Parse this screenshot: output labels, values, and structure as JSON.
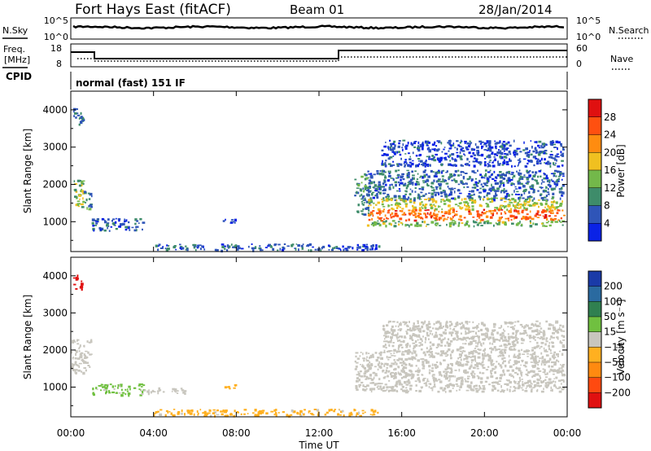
{
  "header": {
    "station": "Fort Hays East (fitACF)",
    "beam": "Beam 01",
    "date": "28/Jan/2014"
  },
  "noise_panel": {
    "left_label": "N.Sky",
    "right_label": "N.Search",
    "tick_top": "10^5",
    "tick_bottom": "10^0",
    "right_tick_top": "10^5",
    "right_tick_bottom": "10^0"
  },
  "freq_panel": {
    "left_label_1": "Freq.",
    "left_label_2": "[MHz]",
    "left_tick_top": "18",
    "left_tick_bottom": "8",
    "right_label": "Nave",
    "right_tick_top": "60",
    "right_tick_bottom": "0"
  },
  "cpid_panel": {
    "label": "CPID",
    "text": "normal (fast) 151 IF"
  },
  "colors": {
    "power_scale": [
      "#0a22e6",
      "#2f55b8",
      "#3e8c6a",
      "#73b84a",
      "#f0c020",
      "#ff8c10",
      "#ff5010",
      "#e01010"
    ],
    "velocity_scale": [
      "#1a3aa8",
      "#2a6aa0",
      "#308050",
      "#70c040",
      "#c8c6be",
      "#ffb020",
      "#ff8a10",
      "#ff4a10",
      "#e01010"
    ]
  },
  "chart_data": [
    {
      "type": "heatmap",
      "panel": "power",
      "ylabel": "Slant Range [km]",
      "y_ticks": [
        "1000",
        "2000",
        "3000",
        "4000"
      ],
      "ylim": [
        200,
        4500
      ],
      "x_ticks": [
        "00:00",
        "04:00",
        "08:00",
        "12:00",
        "16:00",
        "20:00",
        "00:00"
      ],
      "xlim_hours": [
        0,
        24
      ],
      "colorbar": {
        "label": "Power [dB]",
        "ticks": [
          "4",
          "8",
          "12",
          "16",
          "20",
          "24",
          "28"
        ],
        "range": [
          0,
          32
        ]
      },
      "regions": [
        {
          "t": [
            0.1,
            0.6
          ],
          "r": [
            1400,
            2200
          ],
          "v": 14
        },
        {
          "t": [
            0.6,
            1.0
          ],
          "r": [
            1350,
            1850
          ],
          "v": 10
        },
        {
          "t": [
            0.1,
            0.6
          ],
          "r": [
            3600,
            4100
          ],
          "v": 8
        },
        {
          "t": [
            1.0,
            3.5
          ],
          "r": [
            780,
            1100
          ],
          "v": 6
        },
        {
          "t": [
            7.3,
            8.0
          ],
          "r": [
            980,
            1080
          ],
          "v": 6
        },
        {
          "t": [
            13.7,
            14.5
          ],
          "r": [
            1200,
            2300
          ],
          "v": 9
        },
        {
          "t": [
            14.3,
            23.8
          ],
          "r": [
            1600,
            2400
          ],
          "v": 7
        },
        {
          "t": [
            14.3,
            23.8
          ],
          "r": [
            1350,
            1650
          ],
          "v": 16
        },
        {
          "t": [
            14.3,
            23.8
          ],
          "r": [
            1050,
            1350
          ],
          "v": 25
        },
        {
          "t": [
            14.3,
            23.8
          ],
          "r": [
            900,
            1050
          ],
          "v": 13
        },
        {
          "t": [
            15.0,
            23.8
          ],
          "r": [
            2500,
            3200
          ],
          "v": 5
        },
        {
          "t": [
            4.0,
            15.0
          ],
          "r": [
            250,
            420
          ],
          "v": 6
        }
      ]
    },
    {
      "type": "heatmap",
      "panel": "velocity",
      "ylabel": "Slant Range [km]",
      "y_ticks": [
        "1000",
        "2000",
        "3000",
        "4000"
      ],
      "ylim": [
        200,
        4500
      ],
      "x_ticks": [
        "00:00",
        "04:00",
        "08:00",
        "12:00",
        "16:00",
        "20:00",
        "00:00"
      ],
      "xlabel": "Time UT",
      "xlim_hours": [
        0,
        24
      ],
      "colorbar": {
        "label": "Velocity [m s⁻¹]",
        "ticks": [
          "200",
          "100",
          "50",
          "15",
          "−15",
          "−50",
          "−100",
          "−200"
        ],
        "range": [
          -250,
          250
        ]
      },
      "regions": [
        {
          "t": [
            0.0,
            1.0
          ],
          "r": [
            1400,
            2300
          ],
          "v": 0
        },
        {
          "t": [
            1.0,
            3.5
          ],
          "r": [
            800,
            1100
          ],
          "v": 40
        },
        {
          "t": [
            3.5,
            5.5
          ],
          "r": [
            850,
            1000
          ],
          "v": 0
        },
        {
          "t": [
            0.1,
            0.5
          ],
          "r": [
            3650,
            4050
          ],
          "v": -220
        },
        {
          "t": [
            7.3,
            8.0
          ],
          "r": [
            980,
            1080
          ],
          "v": -60
        },
        {
          "t": [
            13.7,
            23.8
          ],
          "r": [
            900,
            2000
          ],
          "v": 0
        },
        {
          "t": [
            15.0,
            23.8
          ],
          "r": [
            2000,
            2800
          ],
          "v": 0
        },
        {
          "t": [
            4.0,
            15.0
          ],
          "r": [
            250,
            420
          ],
          "v": -40
        }
      ]
    }
  ]
}
